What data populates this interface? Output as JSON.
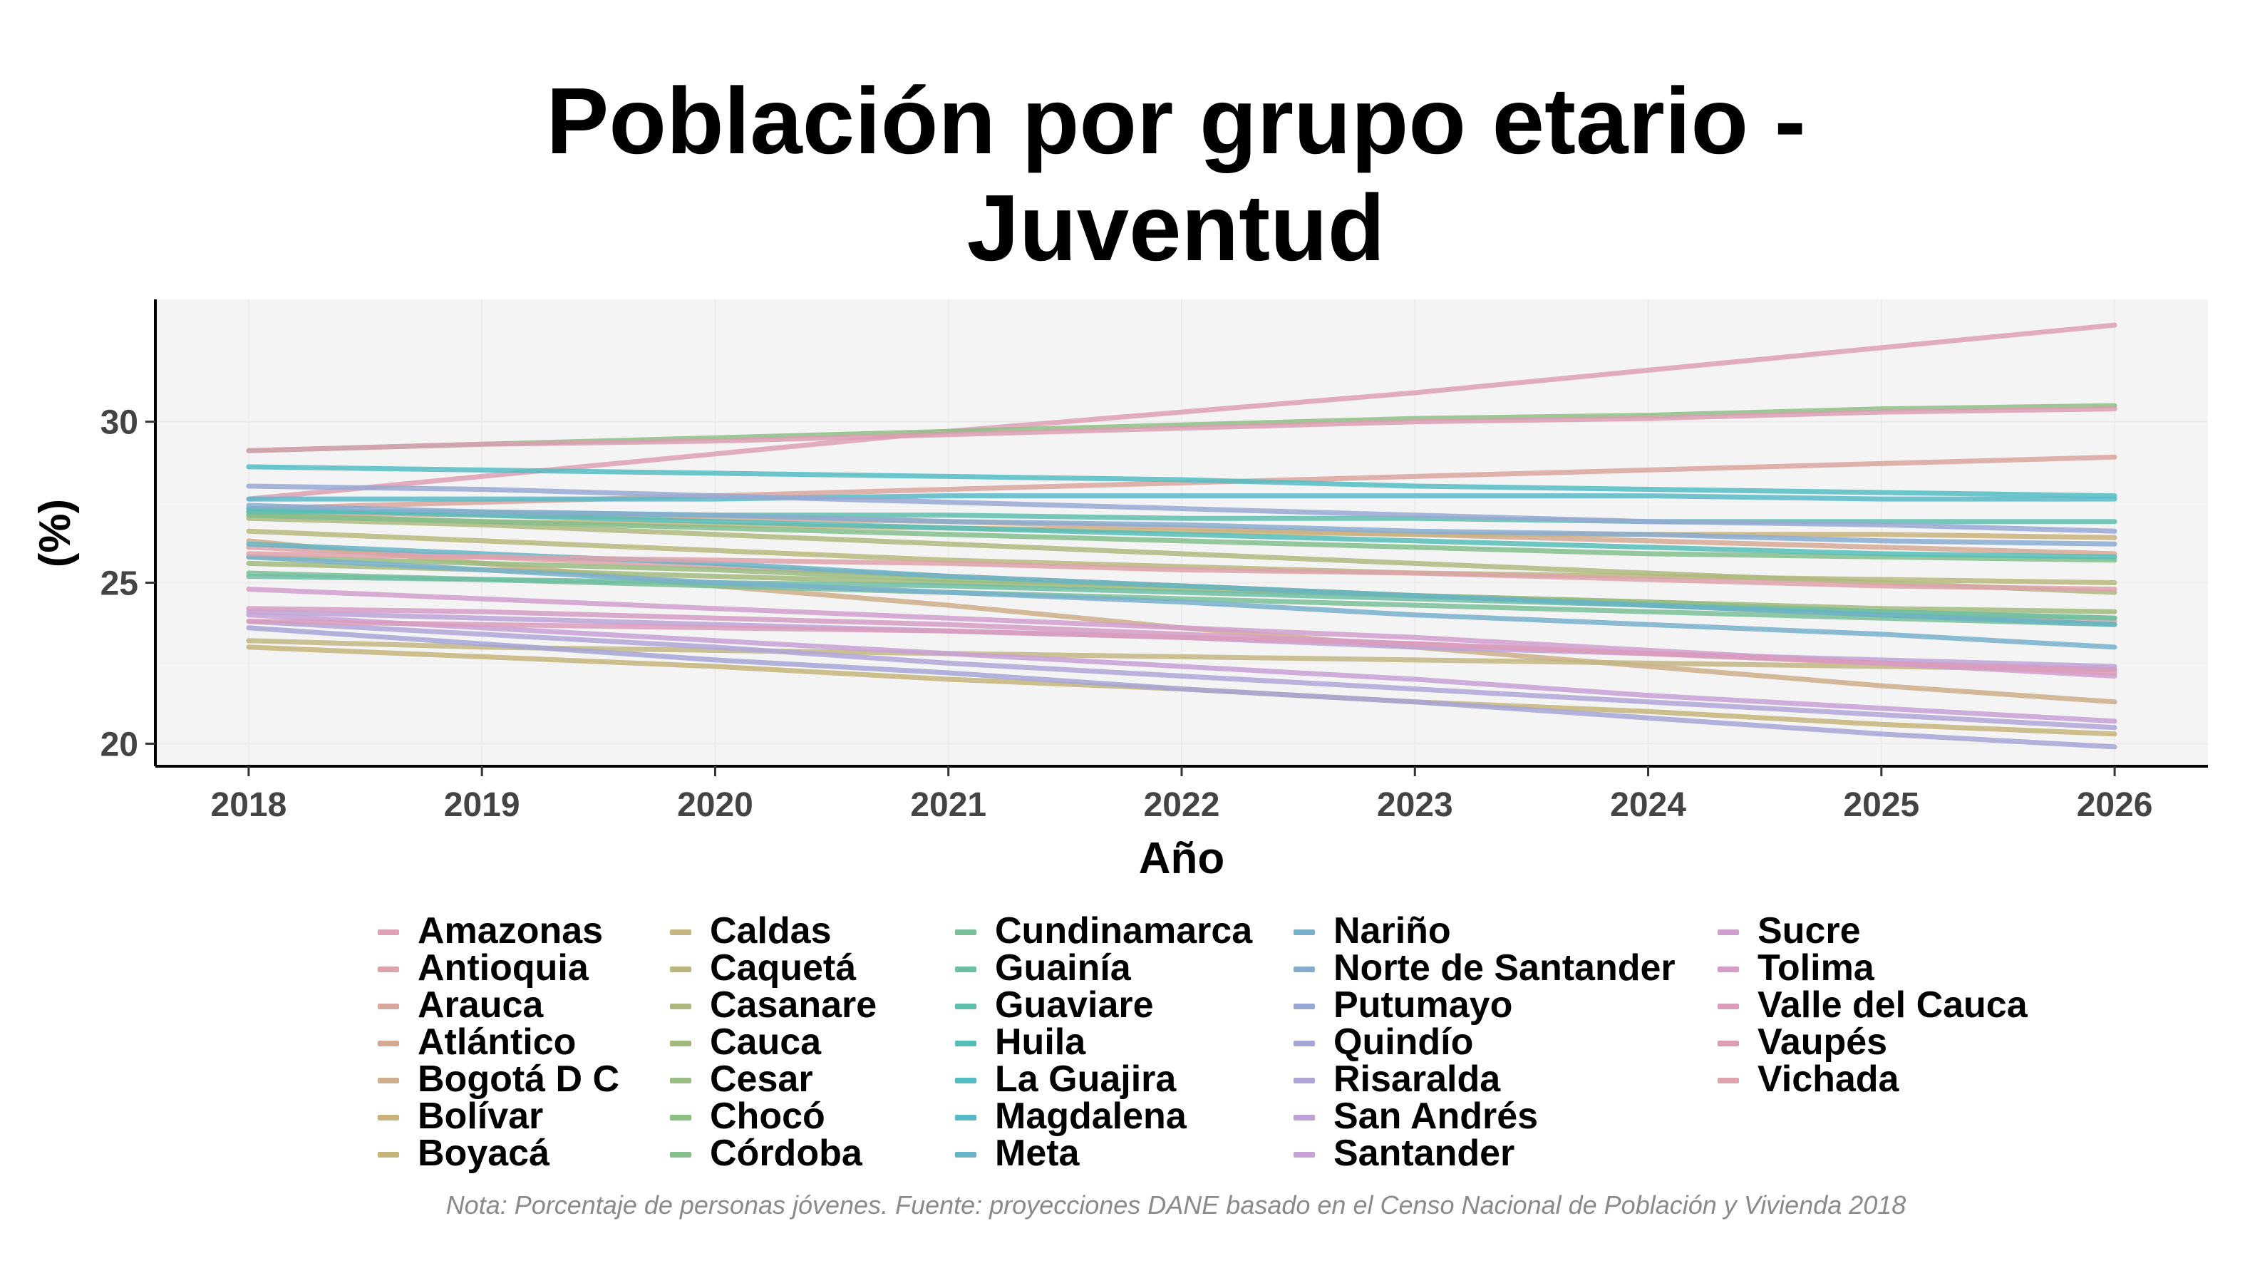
{
  "chart_data": {
    "type": "line",
    "title_lines": [
      "Población por grupo etario -",
      "Juventud"
    ],
    "xlabel": "Año",
    "ylabel": "(%)",
    "x": [
      2018,
      2019,
      2020,
      2021,
      2022,
      2023,
      2024,
      2025,
      2026
    ],
    "xlim": [
      2017.6,
      2026.4
    ],
    "ylim": [
      19.3,
      33.8
    ],
    "y_ticks": [
      20,
      25,
      30
    ],
    "grid": true,
    "legend_position": "bottom",
    "note": "Nota: Porcentaje de personas jóvenes. Fuente: proyecciones DANE basado en el Censo Nacional de Población y Vivienda 2018",
    "series": [
      {
        "name": "Amazonas",
        "color": "#DDA0B4",
        "values": [
          27.6,
          28.3,
          29.0,
          29.7,
          30.3,
          30.9,
          31.6,
          32.3,
          33.0
        ]
      },
      {
        "name": "Antioquia",
        "color": "#DDA2AA",
        "values": [
          26.1,
          25.8,
          25.5,
          25.2,
          24.9,
          24.6,
          24.3,
          24.0,
          23.8
        ]
      },
      {
        "name": "Arauca",
        "color": "#D9A69E",
        "values": [
          27.3,
          27.5,
          27.7,
          27.9,
          28.1,
          28.3,
          28.5,
          28.7,
          28.9
        ]
      },
      {
        "name": "Atlántico",
        "color": "#D6A994",
        "values": [
          27.2,
          27.1,
          27.0,
          26.9,
          26.7,
          26.5,
          26.3,
          26.1,
          25.9
        ]
      },
      {
        "name": "Bogotá D C",
        "color": "#CCAE8A",
        "values": [
          26.3,
          25.6,
          24.9,
          24.3,
          23.6,
          23.0,
          22.4,
          21.8,
          21.3
        ]
      },
      {
        "name": "Bolívar",
        "color": "#C8B37E",
        "values": [
          27.1,
          26.9,
          26.8,
          26.7,
          26.6,
          26.5,
          26.5,
          26.5,
          26.4
        ]
      },
      {
        "name": "Boyacá",
        "color": "#C4B47A",
        "values": [
          23.0,
          22.7,
          22.4,
          22.0,
          21.7,
          21.3,
          21.0,
          20.6,
          20.3
        ]
      },
      {
        "name": "Caldas",
        "color": "#C2B682",
        "values": [
          23.2,
          23.0,
          22.9,
          22.8,
          22.7,
          22.6,
          22.5,
          22.4,
          22.3
        ]
      },
      {
        "name": "Caquetá",
        "color": "#B9B77E",
        "values": [
          26.6,
          26.3,
          26.0,
          25.7,
          25.5,
          25.3,
          25.2,
          25.1,
          25.0
        ]
      },
      {
        "name": "Casanare",
        "color": "#AEB87E",
        "values": [
          27.0,
          26.8,
          26.5,
          26.2,
          25.9,
          25.6,
          25.3,
          25.0,
          24.7
        ]
      },
      {
        "name": "Cauca",
        "color": "#A1BA7C",
        "values": [
          25.6,
          25.4,
          25.2,
          25.0,
          24.8,
          24.6,
          24.4,
          24.2,
          24.1
        ]
      },
      {
        "name": "Cesar",
        "color": "#99BC80",
        "values": [
          25.8,
          25.6,
          25.4,
          25.1,
          24.9,
          24.6,
          24.4,
          24.1,
          23.9
        ]
      },
      {
        "name": "Chocó",
        "color": "#8DBE84",
        "values": [
          29.1,
          29.3,
          29.5,
          29.7,
          29.9,
          30.1,
          30.2,
          30.4,
          30.5
        ]
      },
      {
        "name": "Córdoba",
        "color": "#83BE8C",
        "values": [
          27.1,
          26.9,
          26.7,
          26.5,
          26.3,
          26.1,
          25.9,
          25.8,
          25.7
        ]
      },
      {
        "name": "Cundinamarca",
        "color": "#79BE98",
        "values": [
          25.3,
          25.1,
          24.9,
          24.7,
          24.5,
          24.3,
          24.1,
          23.9,
          23.7
        ]
      },
      {
        "name": "Guainía",
        "color": "#6EBEA4",
        "values": [
          25.2,
          25.1,
          25.0,
          24.9,
          24.7,
          24.5,
          24.3,
          24.1,
          23.9
        ]
      },
      {
        "name": "Guaviare",
        "color": "#5FBEAE",
        "values": [
          27.2,
          27.2,
          27.1,
          27.1,
          27.0,
          27.0,
          26.9,
          26.9,
          26.9
        ]
      },
      {
        "name": "Huila",
        "color": "#55BDB8",
        "values": [
          27.3,
          27.1,
          26.9,
          26.7,
          26.5,
          26.3,
          26.1,
          25.9,
          25.8
        ]
      },
      {
        "name": "La Guajira",
        "color": "#52BCC2",
        "values": [
          28.6,
          28.5,
          28.4,
          28.3,
          28.2,
          28.0,
          27.9,
          27.8,
          27.7
        ]
      },
      {
        "name": "Magdalena",
        "color": "#58B9C8",
        "values": [
          27.6,
          27.6,
          27.6,
          27.7,
          27.7,
          27.7,
          27.7,
          27.6,
          27.6
        ]
      },
      {
        "name": "Meta",
        "color": "#66B4C6",
        "values": [
          26.2,
          25.9,
          25.6,
          25.2,
          24.9,
          24.6,
          24.3,
          24.0,
          23.7
        ]
      },
      {
        "name": "Nariño",
        "color": "#78B0CC",
        "values": [
          25.8,
          25.4,
          25.0,
          24.7,
          24.4,
          24.0,
          23.7,
          23.4,
          23.0
        ]
      },
      {
        "name": "Norte de Santander",
        "color": "#88ACD0",
        "values": [
          27.4,
          27.2,
          27.1,
          26.9,
          26.8,
          26.6,
          26.5,
          26.3,
          26.2
        ]
      },
      {
        "name": "Putumayo",
        "color": "#98A8D4",
        "values": [
          28.0,
          27.9,
          27.7,
          27.5,
          27.3,
          27.1,
          26.9,
          26.8,
          26.6
        ]
      },
      {
        "name": "Quindío",
        "color": "#A4A5D6",
        "values": [
          23.6,
          23.1,
          22.6,
          22.2,
          21.7,
          21.3,
          20.8,
          20.3,
          19.9
        ]
      },
      {
        "name": "Risaralda",
        "color": "#B0A4D8",
        "values": [
          23.8,
          23.4,
          23.0,
          22.5,
          22.1,
          21.7,
          21.3,
          20.9,
          20.5
        ]
      },
      {
        "name": "San Andrés",
        "color": "#BCA2D8",
        "values": [
          24.1,
          23.9,
          23.7,
          23.5,
          23.3,
          23.0,
          22.8,
          22.6,
          22.4
        ]
      },
      {
        "name": "Santander",
        "color": "#C7A0D6",
        "values": [
          24.0,
          23.6,
          23.2,
          22.8,
          22.4,
          22.0,
          21.5,
          21.1,
          20.7
        ]
      },
      {
        "name": "Sucre",
        "color": "#D09ECE",
        "values": [
          24.8,
          24.5,
          24.2,
          23.9,
          23.6,
          23.3,
          22.9,
          22.5,
          22.1
        ]
      },
      {
        "name": "Tolima",
        "color": "#D59CC6",
        "values": [
          24.2,
          24.1,
          23.9,
          23.7,
          23.4,
          23.1,
          22.8,
          22.5,
          22.3
        ]
      },
      {
        "name": "Valle del Cauca",
        "color": "#DA9CBC",
        "values": [
          23.8,
          23.7,
          23.6,
          23.5,
          23.3,
          23.1,
          22.8,
          22.5,
          22.2
        ]
      },
      {
        "name": "Vaupés",
        "color": "#DC9EB2",
        "values": [
          29.1,
          29.3,
          29.4,
          29.6,
          29.8,
          30.0,
          30.1,
          30.3,
          30.4
        ]
      },
      {
        "name": "Vichada",
        "color": "#DEA2AC",
        "values": [
          25.9,
          25.8,
          25.7,
          25.6,
          25.4,
          25.3,
          25.1,
          24.9,
          24.8
        ]
      }
    ]
  }
}
